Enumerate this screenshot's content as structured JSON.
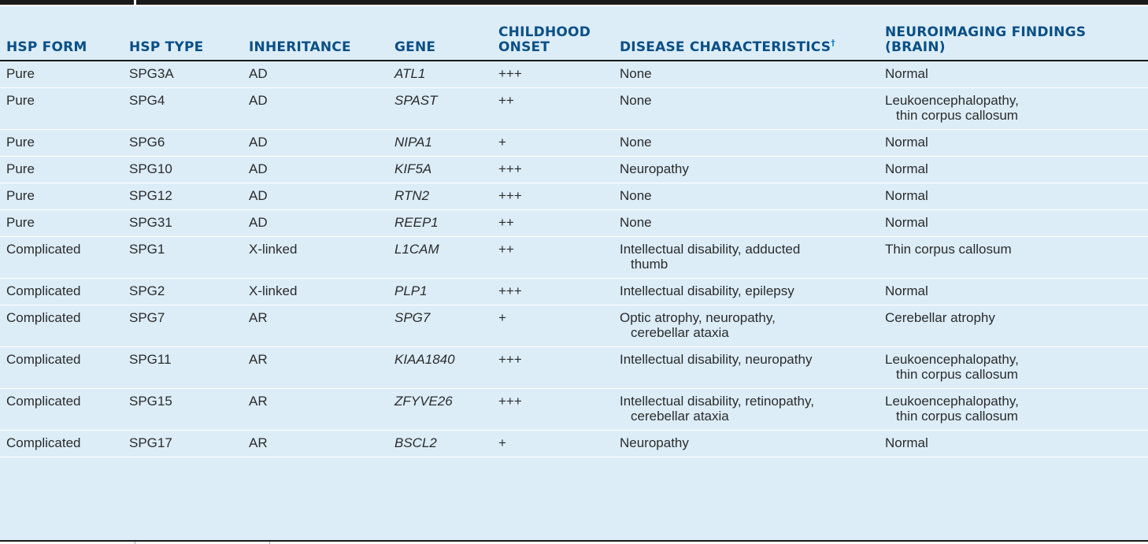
{
  "table": {
    "headers": [
      {
        "label": "HSP FORM",
        "sup": ""
      },
      {
        "label": "HSP TYPE",
        "sup": ""
      },
      {
        "label": "INHERITANCE",
        "sup": ""
      },
      {
        "label": "GENE",
        "sup": ""
      },
      {
        "label": "CHILDHOOD ONSET",
        "sup": ""
      },
      {
        "label": "DISEASE CHARACTERISTICS",
        "sup": "†"
      },
      {
        "label": "NEUROIMAGING FINDINGS (BRAIN)",
        "sup": ""
      }
    ],
    "rows": [
      [
        "Pure",
        "SPG3A",
        "AD",
        "ATL1",
        "+++",
        "None",
        "Normal"
      ],
      [
        "Pure",
        "SPG4",
        "AD",
        "SPAST",
        "++",
        "None",
        "Leukoencephalopathy,|thin corpus callosum"
      ],
      [
        "Pure",
        "SPG6",
        "AD",
        "NIPA1",
        "+",
        "None",
        "Normal"
      ],
      [
        "Pure",
        "SPG10",
        "AD",
        "KIF5A",
        "+++",
        "Neuropathy",
        "Normal"
      ],
      [
        "Pure",
        "SPG12",
        "AD",
        "RTN2",
        "+++",
        "None",
        "Normal"
      ],
      [
        "Pure",
        "SPG31",
        "AD",
        "REEP1",
        "++",
        "None",
        "Normal"
      ],
      [
        "Complicated",
        "SPG1",
        "X-linked",
        "L1CAM",
        "++",
        "Intellectual disability, adducted|thumb",
        "Thin corpus callosum"
      ],
      [
        "Complicated",
        "SPG2",
        "X-linked",
        "PLP1",
        "+++",
        "Intellectual disability, epilepsy",
        "Normal"
      ],
      [
        "Complicated",
        "SPG7",
        "AR",
        "SPG7",
        "+",
        "Optic atrophy, neuropathy,|cerebellar ataxia",
        "Cerebellar atrophy"
      ],
      [
        "Complicated",
        "SPG11",
        "AR",
        "KIAA1840",
        "+++",
        "Intellectual disability, neuropathy",
        "Leukoencephalopathy,|thin corpus callosum"
      ],
      [
        "Complicated",
        "SPG15",
        "AR",
        "ZFYVE26",
        "+++",
        "Intellectual disability, retinopathy,|cerebellar ataxia",
        "Leukoencephalopathy,|thin corpus callosum"
      ],
      [
        "Complicated",
        "SPG17",
        "AR",
        "BSCL2",
        "+",
        "Neuropathy",
        "Normal"
      ]
    ]
  },
  "colors": {
    "header_text": "#0a4f86",
    "row_background": "#dcedf8",
    "body_text": "#2b2b2b",
    "rule": "#1a1a1a",
    "dagger": "#2b8ac8"
  }
}
